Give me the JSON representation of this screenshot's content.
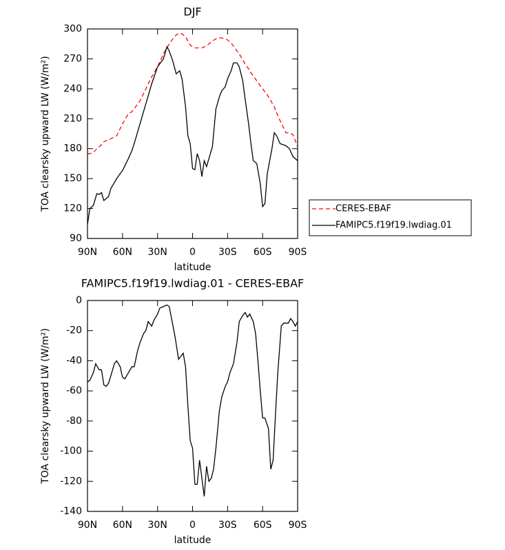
{
  "chart_data": [
    {
      "type": "line",
      "title": "DJF",
      "xlabel": "latitude",
      "ylabel": "TOA clearsky upward LW (W/m²)",
      "x": [
        90,
        88,
        85,
        82,
        80,
        78,
        76,
        72,
        70,
        65,
        62,
        60,
        55,
        52,
        50,
        45,
        40,
        35,
        30,
        25,
        22,
        20,
        17,
        14,
        11,
        9,
        6,
        4,
        2,
        0,
        -2,
        -4,
        -6,
        -8,
        -10,
        -12,
        -14,
        -17,
        -20,
        -23,
        -25,
        -28,
        -30,
        -33,
        -35,
        -38,
        -40,
        -43,
        -45,
        -48,
        -50,
        -52,
        -55,
        -58,
        -60,
        -62,
        -64,
        -68,
        -70,
        -72,
        -75,
        -80,
        -83,
        -86,
        -90
      ],
      "series": [
        {
          "name": "CERES-EBAF",
          "color": "#ff0000",
          "linestyle": "dashed",
          "values": [
            175,
            175,
            176,
            180,
            182,
            184,
            187,
            189,
            190,
            193,
            200,
            205,
            215,
            217,
            220,
            228,
            240,
            252,
            262,
            275,
            281,
            285,
            290,
            294,
            296,
            295,
            292,
            288,
            284,
            282,
            281,
            281,
            281,
            281,
            282,
            283,
            285,
            288,
            290,
            291,
            291,
            290,
            289,
            286,
            283,
            278,
            275,
            269,
            265,
            260,
            256,
            253,
            248,
            243,
            240,
            237,
            234,
            226,
            222,
            216,
            208,
            196,
            196,
            194,
            182
          ]
        },
        {
          "name": "FAMIPC5.f19f19.lwdiag.01",
          "color": "#000000",
          "linestyle": "solid",
          "values": [
            104,
            120,
            123,
            135,
            134,
            136,
            128,
            132,
            140,
            150,
            155,
            158,
            170,
            178,
            185,
            205,
            225,
            245,
            262,
            270,
            282,
            278,
            268,
            255,
            258,
            250,
            222,
            193,
            185,
            160,
            159,
            175,
            168,
            152,
            168,
            162,
            170,
            182,
            220,
            232,
            238,
            242,
            250,
            258,
            266,
            266,
            262,
            248,
            230,
            205,
            185,
            168,
            165,
            145,
            122,
            125,
            155,
            180,
            196,
            193,
            185,
            183,
            180,
            172,
            168
          ]
        }
      ],
      "xlim": [
        90,
        -90
      ],
      "xticks": [
        {
          "value": 90,
          "label": "90N"
        },
        {
          "value": 60,
          "label": "60N"
        },
        {
          "value": 30,
          "label": "30N"
        },
        0,
        {
          "value": -30,
          "label": "30S"
        },
        {
          "value": -60,
          "label": "60S"
        },
        {
          "value": -90,
          "label": "90S"
        }
      ],
      "ylim": [
        90,
        300
      ],
      "yticks": [
        90,
        120,
        150,
        180,
        210,
        240,
        270,
        300
      ],
      "legend": "outside right"
    },
    {
      "type": "line",
      "title": "FAMIPC5.f19f19.lwdiag.01 - CERES-EBAF",
      "xlabel": "latitude",
      "ylabel": "TOA clearsky upward LW (W/m²)",
      "x": [
        90,
        88,
        85,
        83,
        80,
        78,
        76,
        74,
        72,
        70,
        67,
        65,
        62,
        60,
        58,
        55,
        52,
        50,
        47,
        45,
        42,
        40,
        38,
        35,
        33,
        30,
        28,
        25,
        22,
        20,
        18,
        15,
        12,
        10,
        8,
        6,
        4,
        2,
        0,
        -2,
        -4,
        -6,
        -8,
        -10,
        -12,
        -14,
        -16,
        -18,
        -20,
        -23,
        -25,
        -28,
        -30,
        -32,
        -35,
        -38,
        -40,
        -43,
        -45,
        -47,
        -49,
        -52,
        -54,
        -56,
        -58,
        -60,
        -62,
        -65,
        -67,
        -69,
        -71,
        -73,
        -76,
        -78,
        -82,
        -84,
        -86,
        -88,
        -90
      ],
      "values": [
        -54,
        -53,
        -48,
        -42,
        -46,
        -46,
        -56,
        -57,
        -55,
        -50,
        -42,
        -40,
        -44,
        -51,
        -52,
        -48,
        -44,
        -44,
        -33,
        -28,
        -22,
        -20,
        -14,
        -17,
        -13,
        -9,
        -5,
        -4,
        -3,
        -4,
        -12,
        -24,
        -39,
        -37,
        -35,
        -44,
        -70,
        -93,
        -98,
        -122,
        -122,
        -106,
        -118,
        -130,
        -110,
        -120,
        -118,
        -112,
        -98,
        -73,
        -64,
        -57,
        -54,
        -48,
        -42,
        -28,
        -14,
        -10,
        -8,
        -11,
        -9,
        -14,
        -22,
        -40,
        -60,
        -78,
        -78,
        -85,
        -112,
        -106,
        -76,
        -48,
        -17,
        -15,
        -15,
        -12,
        -14,
        -17,
        -14
      ],
      "color": "#000000",
      "xlim": [
        90,
        -90
      ],
      "xticks": [
        {
          "value": 90,
          "label": "90N"
        },
        {
          "value": 60,
          "label": "60N"
        },
        {
          "value": 30,
          "label": "30N"
        },
        0,
        {
          "value": -30,
          "label": "30S"
        },
        {
          "value": -60,
          "label": "60S"
        },
        {
          "value": -90,
          "label": "90S"
        }
      ],
      "ylim": [
        -140,
        0
      ],
      "yticks": [
        -140,
        -120,
        -100,
        -80,
        -60,
        -40,
        -20,
        0
      ]
    }
  ]
}
